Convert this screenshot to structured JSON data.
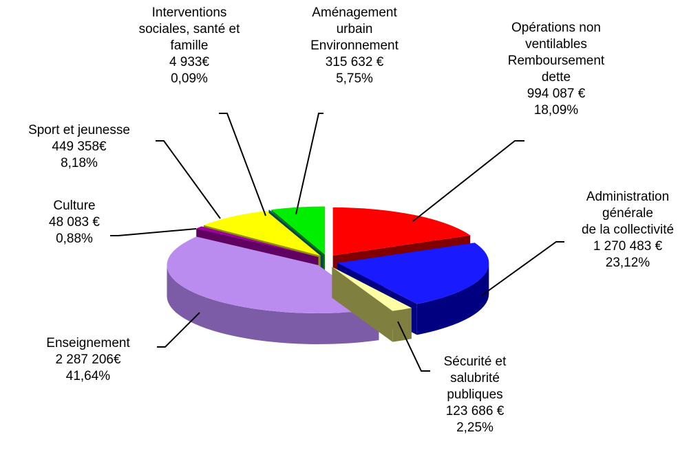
{
  "chart_data": {
    "type": "pie",
    "categories": [
      "Opérations non\nventilables\nRemboursement\ndette",
      "Administration\ngénérale\nde la collectivité",
      "Sécurité et\nsalubrité\npubliques",
      "Enseignement",
      "Culture",
      "Sport et jeunesse",
      "Interventions\nsociales, santé et\nfamille",
      "Aménagement\nurbain\nEnvironnement"
    ],
    "amounts": [
      994087,
      1270483,
      123686,
      2287206,
      48083,
      449358,
      4933,
      315632
    ],
    "amount_labels": [
      "994 087 €",
      "1 270 483 €",
      "123 686 €",
      "2 287 206€",
      "48 083 €",
      "449 358€",
      "4 933€",
      "315 632 €"
    ],
    "values": [
      18.09,
      23.12,
      2.25,
      41.64,
      0.88,
      8.18,
      0.09,
      5.75
    ],
    "value_labels": [
      "18,09%",
      "23,12%",
      "2,25%",
      "41,64%",
      "0,88%",
      "8,18%",
      "0,09%",
      "5,75%"
    ],
    "colors": [
      "#ff0000",
      "#1a1aff",
      "#ffffa6",
      "#bb8cf0",
      "#a000a0",
      "#ffff00",
      "#008080",
      "#00ee00"
    ],
    "side_colors": [
      "#800000",
      "#000080",
      "#7f7f40",
      "#7c5ca6",
      "#600060",
      "#8f8f00",
      "#004848",
      "#007a00"
    ]
  }
}
